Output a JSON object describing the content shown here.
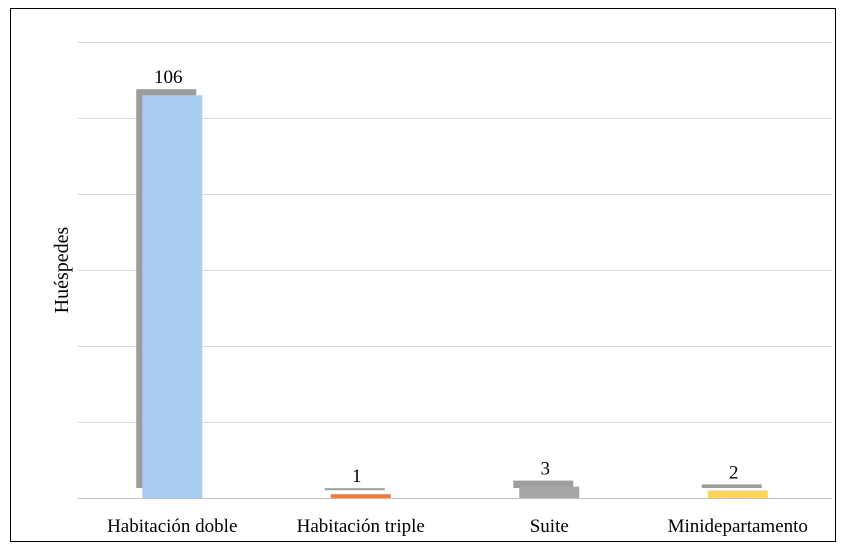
{
  "chart_data": {
    "type": "bar",
    "title": "",
    "xlabel": "",
    "ylabel": "Huéspedes",
    "categories": [
      "Habitación doble",
      "Habitación triple",
      "Suite",
      "Minidepartamento"
    ],
    "values": [
      106,
      1,
      3,
      2
    ],
    "ylim": [
      0,
      120
    ],
    "grid": true,
    "legend": "none",
    "colors": [
      "#a9cdf1",
      "#ee7d3b",
      "#a6a6a6",
      "#fbd55c"
    ],
    "shadow_color": "#8c8c8c"
  }
}
